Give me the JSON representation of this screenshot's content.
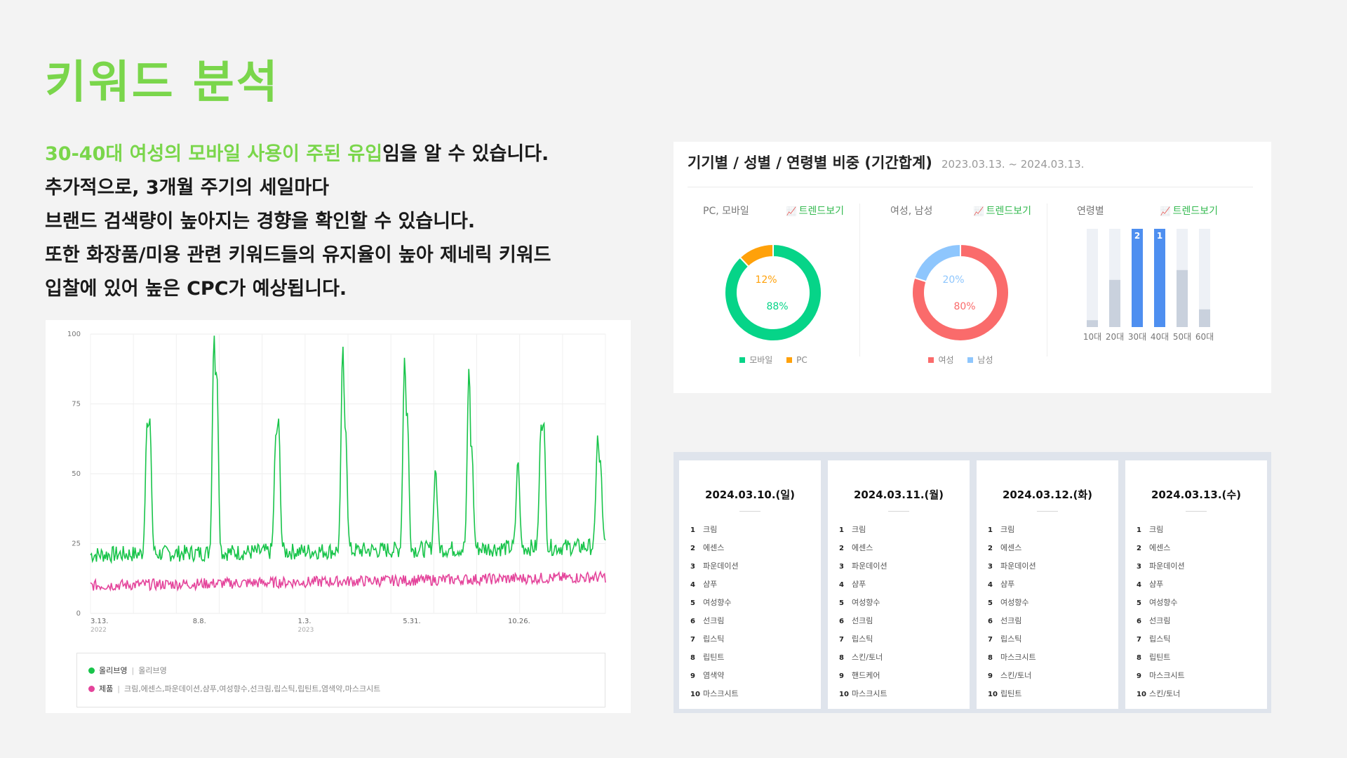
{
  "page": {
    "title": "키워드 분석",
    "summary": {
      "line1_highlight": "30-40대 여성의 모바일 사용이 주된 유입",
      "line1_rest": "임을 알 수 있습니다.",
      "line2": "추가적으로, 3개월 주기의 세일마다",
      "line3": "브랜드 검색량이 높아지는 경향을 확인할 수 있습니다.",
      "line4": "또한 화장품/미용 관련 키워드들의 유지율이 높아 제네릭 키워드",
      "line5": "입찰에 있어 높은 CPC가 예상됩니다."
    }
  },
  "trend_chart": {
    "chart_data": {
      "type": "line",
      "ylim": [
        0,
        100
      ],
      "yticks": [
        "100",
        "75",
        "50",
        "25",
        "0"
      ],
      "xticks": [
        {
          "label": "3.13.",
          "sub": "2022",
          "t": 0
        },
        {
          "label": "8.8.",
          "sub": "",
          "t": 0.204
        },
        {
          "label": "1.3.",
          "sub": "2023",
          "t": 0.408
        },
        {
          "label": "5.31.",
          "sub": "",
          "t": 0.612
        },
        {
          "label": "10.26.",
          "sub": "",
          "t": 0.816
        }
      ],
      "series": [
        {
          "name": "올리브영",
          "color": "#18c44a",
          "baseline": 21,
          "baseline_end": 24,
          "noise": 3,
          "spikes": [
            [
              0.11,
              68
            ],
            [
              0.115,
              70
            ],
            [
              0.24,
              100
            ],
            [
              0.245,
              87
            ],
            [
              0.36,
              62
            ],
            [
              0.365,
              70
            ],
            [
              0.49,
              96
            ],
            [
              0.495,
              67
            ],
            [
              0.61,
              92
            ],
            [
              0.615,
              72
            ],
            [
              0.67,
              52
            ],
            [
              0.735,
              88
            ],
            [
              0.74,
              60
            ],
            [
              0.83,
              55
            ],
            [
              0.875,
              67
            ],
            [
              0.88,
              69
            ],
            [
              0.985,
              64
            ],
            [
              0.99,
              55
            ]
          ]
        },
        {
          "name": "제품",
          "color": "#e4449b",
          "baseline": 10,
          "baseline_end": 13,
          "noise": 2,
          "spikes": []
        }
      ]
    },
    "legend": [
      {
        "name": "올리브영",
        "desc": "올리브영",
        "color": "#18c44a"
      },
      {
        "name": "제품",
        "desc": "크림,에센스,파운데이션,샴푸,여성향수,선크림,립스틱,립틴트,염색약,마스크시트",
        "color": "#e4449b"
      }
    ]
  },
  "demographics": {
    "title": "기기별 / 성별 / 연령별 비중 (기간합계)",
    "period": "2023.03.13. ~ 2024.03.13.",
    "trend_link": "트렌드보기",
    "device": {
      "label": "PC, 모바일",
      "chart_data": {
        "type": "pie",
        "slices": [
          {
            "name": "모바일",
            "value": 88,
            "label": "88%",
            "color": "#06d488"
          },
          {
            "name": "PC",
            "value": 12,
            "label": "12%",
            "color": "#ffa10a"
          }
        ]
      }
    },
    "gender": {
      "label": "여성, 남성",
      "chart_data": {
        "type": "pie",
        "slices": [
          {
            "name": "여성",
            "value": 80,
            "label": "80%",
            "color": "#fa6b6b"
          },
          {
            "name": "남성",
            "value": 20,
            "label": "20%",
            "color": "#8ec6fd"
          }
        ]
      }
    },
    "age": {
      "label": "연령별",
      "chart_data": {
        "type": "bar",
        "categories": [
          "10대",
          "20대",
          "30대",
          "40대",
          "50대",
          "60대"
        ],
        "values": [
          7,
          48,
          100,
          100,
          58,
          18
        ],
        "ranks": [
          "",
          "",
          "2",
          "1",
          "",
          ""
        ],
        "colors": {
          "top": "#4e8ff0",
          "other": "#c9d1dd",
          "track": "#eef1f6"
        },
        "ylim": [
          0,
          100
        ]
      }
    }
  },
  "rankings": [
    {
      "date": "2024.03.10.(일)",
      "items": [
        "크림",
        "에센스",
        "파운데이션",
        "샴푸",
        "여성향수",
        "선크림",
        "립스틱",
        "립틴트",
        "염색약",
        "마스크시트"
      ]
    },
    {
      "date": "2024.03.11.(월)",
      "items": [
        "크림",
        "에센스",
        "파운데이션",
        "샴푸",
        "여성향수",
        "선크림",
        "립스틱",
        "스킨/토너",
        "핸드케어",
        "마스크시트"
      ]
    },
    {
      "date": "2024.03.12.(화)",
      "items": [
        "크림",
        "에센스",
        "파운데이션",
        "샴푸",
        "여성향수",
        "선크림",
        "립스틱",
        "마스크시트",
        "스킨/토너",
        "립틴트"
      ]
    },
    {
      "date": "2024.03.13.(수)",
      "items": [
        "크림",
        "에센스",
        "파운데이션",
        "샴푸",
        "여성향수",
        "선크림",
        "립스틱",
        "립틴트",
        "마스크시트",
        "스킨/토너"
      ]
    }
  ]
}
